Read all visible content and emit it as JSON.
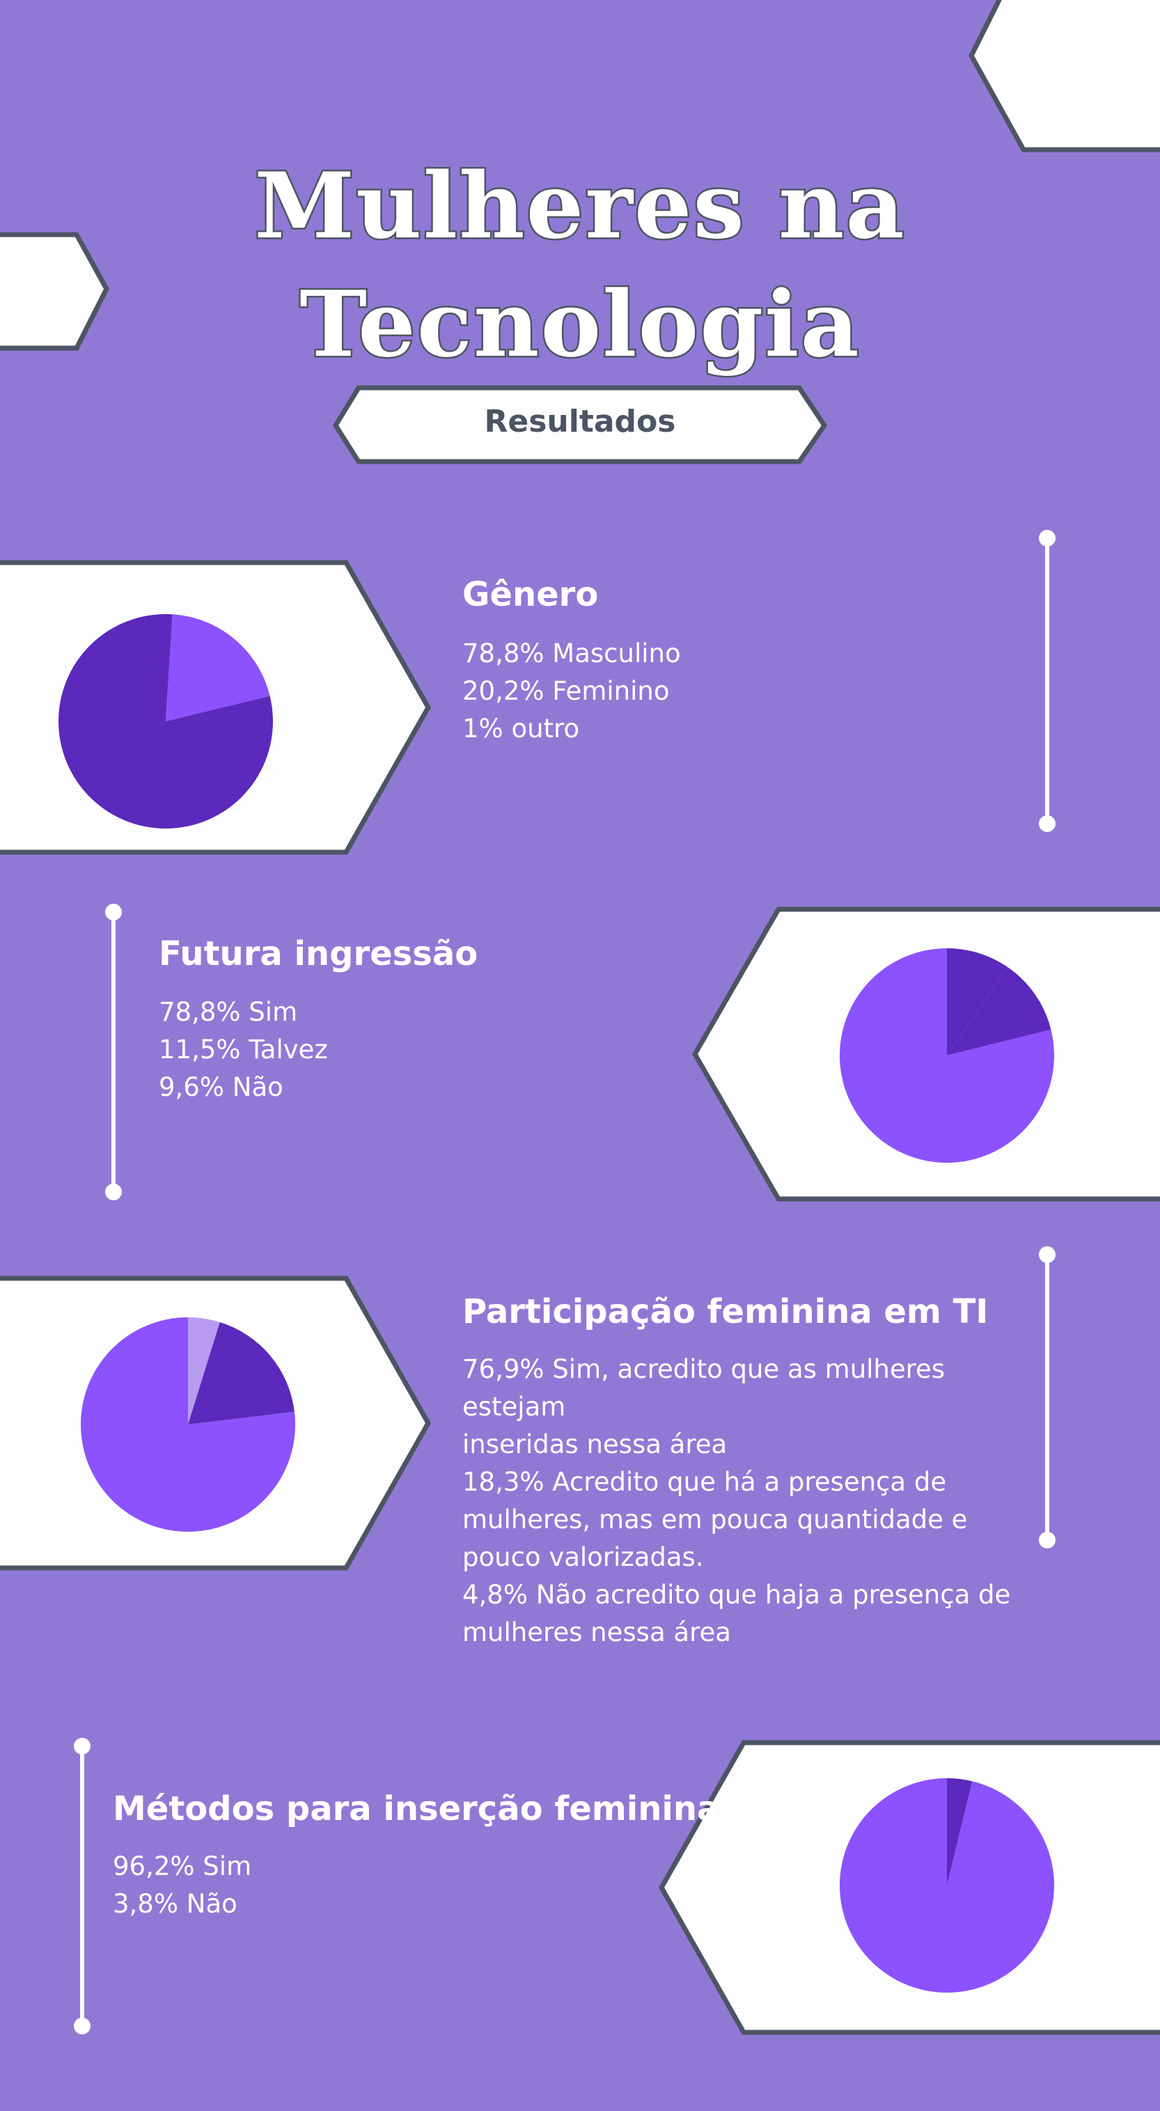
{
  "header": {
    "title_line1": "Mulheres na",
    "title_line2": "Tecnologia",
    "subtitle": "Resultados"
  },
  "colors": {
    "background": "#9079d4",
    "panel": "#fdfdfd",
    "outline": "#4c5563",
    "slice_light": "#8b52fd",
    "slice_dark": "#5b29bb",
    "slice_pale": "#b79cf2",
    "text": "#ffffff"
  },
  "sections": [
    {
      "title": "Gênero",
      "lines": [
        "78,8% Masculino",
        "20,2% Feminino",
        "1% outro"
      ]
    },
    {
      "title": "Futura ingressão",
      "lines": [
        "78,8% Sim",
        "11,5% Talvez",
        "9,6% Não"
      ]
    },
    {
      "title": "Participação feminina em TI",
      "lines": [
        "76,9% Sim, acredito que as mulheres",
        "estejam",
        "inseridas nessa área",
        "18,3% Acredito que há a presença de",
        "mulheres, mas em pouca quantidade e",
        "pouco valorizadas.",
        "4,8% Não acredito que haja a presença de",
        "mulheres nessa área"
      ]
    },
    {
      "title": "Métodos para inserção feminina",
      "lines": [
        "96,2% Sim",
        "3,8% Não"
      ]
    }
  ],
  "chart_data": [
    {
      "type": "pie",
      "categories": [
        "Masculino",
        "Feminino",
        "outro"
      ],
      "values": [
        78.8,
        20.2,
        1.0
      ],
      "colors": [
        "#5b29bb",
        "#8b52fd",
        "#5b29bb"
      ]
    },
    {
      "type": "pie",
      "categories": [
        "Sim",
        "Talvez",
        "Não"
      ],
      "values": [
        78.8,
        11.5,
        9.6
      ],
      "colors": [
        "#8b52fd",
        "#5b29bb",
        "#5b29bb"
      ]
    },
    {
      "type": "pie",
      "categories": [
        "Sim",
        "Pouca quantidade",
        "Não"
      ],
      "values": [
        76.9,
        18.3,
        4.8
      ],
      "colors": [
        "#8b52fd",
        "#5b29bb",
        "#b79cf2"
      ]
    },
    {
      "type": "pie",
      "categories": [
        "Sim",
        "Não"
      ],
      "values": [
        96.2,
        3.8
      ],
      "colors": [
        "#8b52fd",
        "#5b29bb"
      ]
    }
  ]
}
